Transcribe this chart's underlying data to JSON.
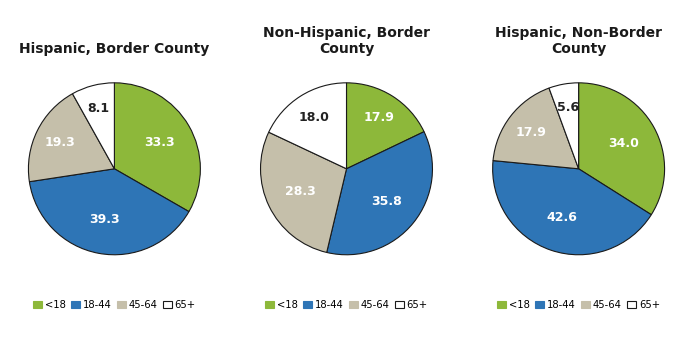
{
  "charts": [
    {
      "title": "Hispanic, Border County",
      "values": [
        33.3,
        39.3,
        19.3,
        8.1
      ],
      "labels": [
        "33.3",
        "39.3",
        "19.3",
        "8.1"
      ]
    },
    {
      "title": "Non-Hispanic, Border\nCounty",
      "values": [
        17.9,
        35.8,
        28.3,
        18.0
      ],
      "labels": [
        "17.9",
        "35.8",
        "28.3",
        "18.0"
      ]
    },
    {
      "title": "Hispanic, Non-Border\nCounty",
      "values": [
        34.0,
        42.6,
        17.9,
        5.6
      ],
      "labels": [
        "34.0",
        "42.6",
        "17.9",
        "5.6"
      ]
    }
  ],
  "colors": [
    "#8db83a",
    "#2e75b6",
    "#c5bfaa",
    "#ffffff"
  ],
  "legend_labels": [
    "<18",
    "18-44",
    "45-64",
    "65+"
  ],
  "text_colors_dark": [
    false,
    false,
    false,
    true
  ],
  "startangle": 90,
  "background_color": "#ffffff",
  "title_fontsize": 10,
  "label_fontsize": 9,
  "edge_color": "#1a1a1a",
  "edge_linewidth": 0.8
}
